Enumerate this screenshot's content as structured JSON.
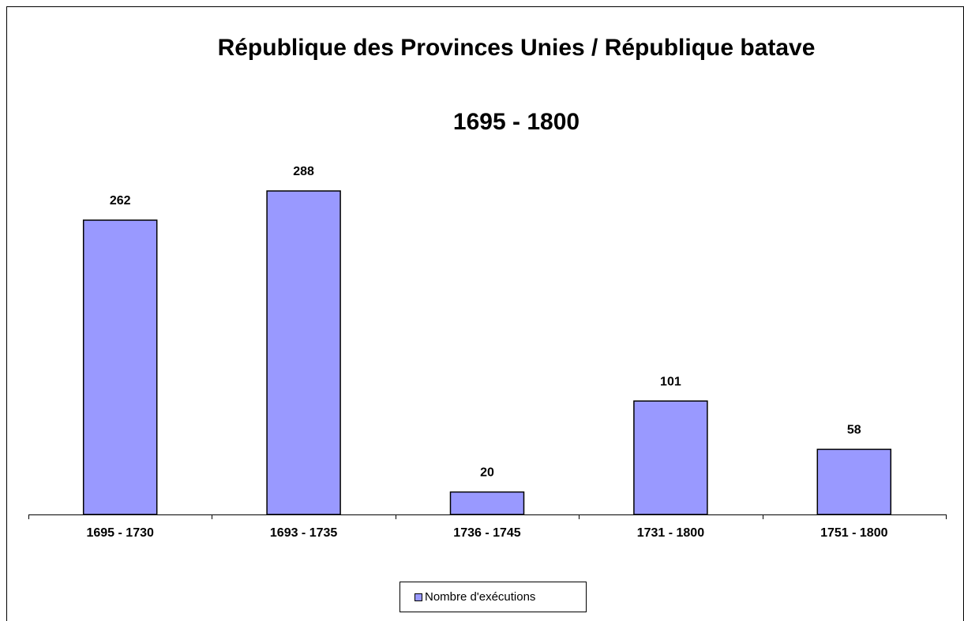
{
  "chart_data": {
    "type": "bar",
    "title": "République des Provinces Unies / République batave",
    "subtitle": "1695 - 1800",
    "categories": [
      "1695 - 1730",
      "1693 - 1735",
      "1736 - 1745",
      "1731 - 1800",
      "1751 - 1800"
    ],
    "series": [
      {
        "name": "Nombre d'exécutions",
        "color": "#9999ff",
        "values": [
          262,
          288,
          20,
          101,
          58
        ]
      }
    ],
    "legend": "bottom"
  }
}
